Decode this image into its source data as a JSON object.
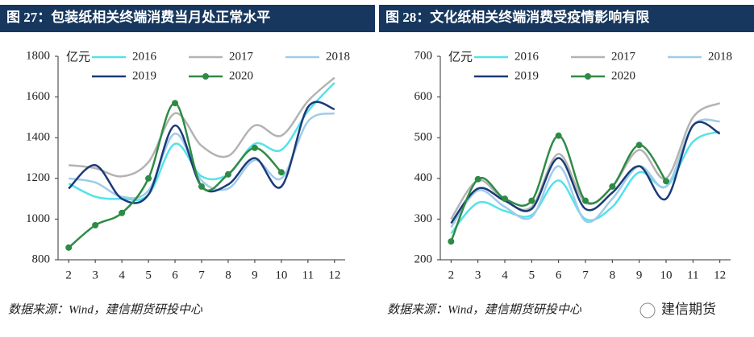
{
  "chart_data": [
    {
      "type": "line",
      "title": "图 27：包装纸相关终端消费当月处正常水平",
      "y_unit": "亿元",
      "source": "数据来源：Wind，建信期货研投中心",
      "x": [
        2,
        3,
        4,
        5,
        6,
        7,
        8,
        9,
        10,
        11,
        12
      ],
      "xlim": [
        1.6,
        12.4
      ],
      "xticks": [
        2,
        3,
        4,
        5,
        6,
        7,
        8,
        9,
        10,
        11,
        12
      ],
      "ylim": [
        800,
        1800
      ],
      "yticks": [
        800,
        1000,
        1200,
        1400,
        1600,
        1800
      ],
      "series": [
        {
          "name": "2016",
          "color": "#52e3ea",
          "values": [
            1175,
            1110,
            1100,
            1120,
            1370,
            1210,
            1220,
            1370,
            1340,
            1530,
            1670
          ]
        },
        {
          "name": "2017",
          "color": "#b3b3b3",
          "values": [
            1265,
            1250,
            1210,
            1280,
            1520,
            1360,
            1310,
            1460,
            1410,
            1580,
            1695
          ]
        },
        {
          "name": "2018",
          "color": "#9fcbea",
          "values": [
            1200,
            1180,
            1110,
            1140,
            1420,
            1190,
            1150,
            1290,
            1200,
            1480,
            1520
          ]
        },
        {
          "name": "2019",
          "color": "#1b3a78",
          "values": [
            1150,
            1265,
            1100,
            1120,
            1460,
            1160,
            1170,
            1300,
            1160,
            1550,
            1540
          ]
        },
        {
          "name": "2020",
          "color": "#2e8b45",
          "markers": true,
          "values": [
            860,
            970,
            1030,
            1200,
            1570,
            1160,
            1220,
            1350,
            1230,
            null,
            null
          ]
        }
      ]
    },
    {
      "type": "line",
      "title": "图 28：文化纸相关终端消费受疫情影响有限",
      "y_unit": "亿元",
      "source": "数据来源：Wind，建信期货研投中心",
      "x": [
        2,
        3,
        4,
        5,
        6,
        7,
        8,
        9,
        10,
        11,
        12
      ],
      "xlim": [
        1.6,
        12.4
      ],
      "xticks": [
        2,
        3,
        4,
        5,
        6,
        7,
        8,
        9,
        10,
        11,
        12
      ],
      "ylim": [
        200,
        700
      ],
      "yticks": [
        200,
        300,
        400,
        500,
        600,
        700
      ],
      "series": [
        {
          "name": "2016",
          "color": "#52e3ea",
          "values": [
            265,
            340,
            320,
            310,
            395,
            300,
            330,
            415,
            380,
            490,
            515
          ]
        },
        {
          "name": "2017",
          "color": "#b3b3b3",
          "values": [
            300,
            395,
            345,
            330,
            460,
            340,
            380,
            470,
            400,
            550,
            585
          ]
        },
        {
          "name": "2018",
          "color": "#9fcbea",
          "values": [
            280,
            370,
            330,
            305,
            430,
            295,
            350,
            430,
            380,
            530,
            540
          ]
        },
        {
          "name": "2019",
          "color": "#1b3a78",
          "values": [
            290,
            375,
            345,
            325,
            450,
            325,
            365,
            430,
            350,
            530,
            510
          ]
        },
        {
          "name": "2020",
          "color": "#2e8b45",
          "markers": true,
          "values": [
            245,
            398,
            350,
            345,
            505,
            345,
            380,
            482,
            393,
            null,
            null
          ]
        }
      ]
    }
  ],
  "watermark": "建信期货"
}
